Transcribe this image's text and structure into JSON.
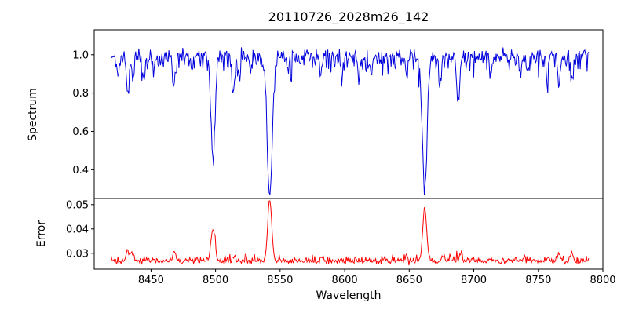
{
  "chart_data": {
    "type": "line",
    "title": "20110726_2028m26_142",
    "xlabel": "Wavelength",
    "xlim": [
      8406,
      8800
    ],
    "xticks": [
      8450,
      8500,
      8550,
      8600,
      8650,
      8700,
      8750,
      8800
    ],
    "x_range": [
      8419,
      8789
    ],
    "n_points": 620,
    "seed": 20110726,
    "grid": false,
    "legend": "none",
    "panels": [
      {
        "name": "spectrum",
        "ylabel": "Spectrum",
        "color": "#0000dd",
        "ylim": [
          0.25,
          1.13
        ],
        "yticks": [
          0.4,
          0.6,
          0.8,
          1.0
        ],
        "ytick_decimals": 1,
        "baseline": 1.0,
        "noise_sigma": 0.016,
        "downward_noise_sigma": 0.042,
        "clamp": [
          0.27,
          1.09
        ],
        "absorption_lines": [
          [
            8424,
            0.1,
            0.9
          ],
          [
            8432,
            0.22,
            1.1
          ],
          [
            8436,
            0.12,
            0.9
          ],
          [
            8444,
            0.1,
            0.9
          ],
          [
            8452,
            0.08,
            0.8
          ],
          [
            8468,
            0.16,
            1.0
          ],
          [
            8482,
            0.07,
            0.8
          ],
          [
            8498,
            0.53,
            1.6
          ],
          [
            8514,
            0.16,
            1.0
          ],
          [
            8518,
            0.1,
            0.8
          ],
          [
            8527,
            0.08,
            0.8
          ],
          [
            8542,
            0.71,
            2.0
          ],
          [
            8556,
            0.07,
            0.8
          ],
          [
            8582,
            0.1,
            0.9
          ],
          [
            8598,
            0.1,
            0.9
          ],
          [
            8611,
            0.08,
            0.8
          ],
          [
            8621,
            0.1,
            0.9
          ],
          [
            8648,
            0.12,
            0.9
          ],
          [
            8662,
            0.7,
            1.8
          ],
          [
            8674,
            0.14,
            0.9
          ],
          [
            8688,
            0.26,
            1.2
          ],
          [
            8713,
            0.1,
            0.9
          ],
          [
            8736,
            0.1,
            0.9
          ],
          [
            8742,
            0.08,
            0.8
          ],
          [
            8757,
            0.12,
            0.9
          ],
          [
            8766,
            0.14,
            0.9
          ],
          [
            8776,
            0.12,
            0.9
          ]
        ]
      },
      {
        "name": "error",
        "ylabel": "Error",
        "color": "#ff0000",
        "ylim": [
          0.0235,
          0.0525
        ],
        "yticks": [
          0.03,
          0.04,
          0.05
        ],
        "ytick_decimals": 2,
        "baseline": 0.0266,
        "noise_sigma": 0.0005,
        "upward_noise_sigma": 0.0011,
        "clamp": [
          0.0245,
          0.0515
        ],
        "peaks": [
          [
            8432,
            0.004,
            1.2
          ],
          [
            8436,
            0.003,
            1.0
          ],
          [
            8468,
            0.0035,
            1.2
          ],
          [
            8498,
            0.0135,
            1.5
          ],
          [
            8514,
            0.0015,
            1.0
          ],
          [
            8542,
            0.0245,
            1.6
          ],
          [
            8582,
            0.001,
            0.9
          ],
          [
            8598,
            0.001,
            0.9
          ],
          [
            8648,
            0.0015,
            0.9
          ],
          [
            8662,
            0.0215,
            1.5
          ],
          [
            8676,
            0.002,
            1.0
          ],
          [
            8690,
            0.003,
            1.2
          ],
          [
            8713,
            0.001,
            0.9
          ],
          [
            8736,
            0.001,
            0.9
          ],
          [
            8757,
            0.0015,
            0.9
          ],
          [
            8766,
            0.003,
            1.2
          ],
          [
            8776,
            0.0035,
            1.2
          ]
        ]
      }
    ]
  }
}
